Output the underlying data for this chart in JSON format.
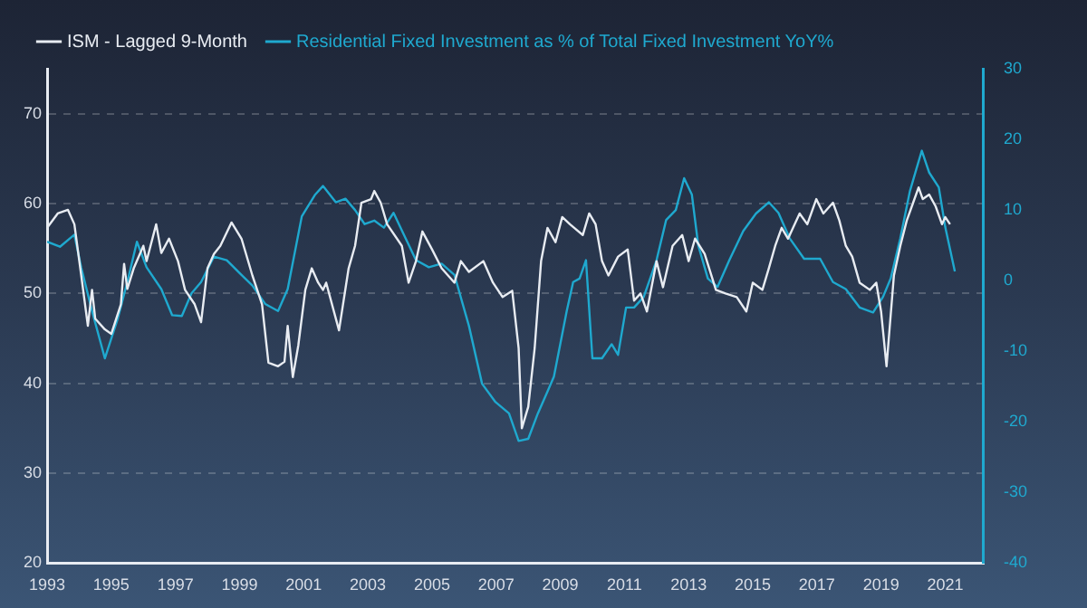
{
  "chart_data": {
    "type": "line",
    "legend": "top left",
    "grid": "y",
    "line_style": "solid",
    "marker": "none",
    "xlim": [
      1993,
      2022.2
    ],
    "xticks": [
      1993,
      1995,
      1997,
      1999,
      2001,
      2003,
      2005,
      2007,
      2009,
      2011,
      2013,
      2015,
      2017,
      2019,
      2021
    ],
    "ylim": [
      20,
      75
    ],
    "yticks": [
      20,
      30,
      40,
      50,
      60,
      70
    ],
    "y2lim": [
      -40,
      30
    ],
    "y2ticks": [
      -40,
      -30,
      -20,
      -10,
      0,
      10,
      20,
      30
    ],
    "series": [
      {
        "name": "ISM - Lagged 9-Month",
        "color": "#e8ecf2",
        "x": [
          1993.0,
          1993.33,
          1993.65,
          1993.85,
          1994.06,
          1994.27,
          1994.4,
          1994.5,
          1994.8,
          1995.0,
          1995.3,
          1995.4,
          1995.5,
          1995.7,
          1996.0,
          1996.1,
          1996.4,
          1996.56,
          1996.8,
          1997.08,
          1997.3,
          1997.6,
          1997.8,
          1998.0,
          1998.2,
          1998.4,
          1998.75,
          1999.06,
          1999.4,
          1999.7,
          1999.9,
          2000.2,
          2000.4,
          2000.5,
          2000.66,
          2000.83,
          2001.05,
          2001.25,
          2001.45,
          2001.6,
          2001.7,
          2002.1,
          2002.4,
          2002.6,
          2002.8,
          2003.1,
          2003.2,
          2003.4,
          2003.6,
          2004.06,
          2004.27,
          2004.5,
          2004.7,
          2005.0,
          2005.3,
          2005.7,
          2005.9,
          2006.15,
          2006.6,
          2006.9,
          2007.2,
          2007.5,
          2007.7,
          2007.8,
          2008.0,
          2008.2,
          2008.4,
          2008.6,
          2008.85,
          2009.06,
          2009.3,
          2009.7,
          2009.9,
          2010.1,
          2010.3,
          2010.5,
          2010.8,
          2011.1,
          2011.3,
          2011.5,
          2011.7,
          2012.0,
          2012.2,
          2012.5,
          2012.8,
          2013.0,
          2013.2,
          2013.5,
          2013.85,
          2014.15,
          2014.5,
          2014.8,
          2015.0,
          2015.3,
          2015.5,
          2015.7,
          2015.9,
          2016.1,
          2016.46,
          2016.7,
          2016.98,
          2017.2,
          2017.5,
          2017.7,
          2017.9,
          2018.1,
          2018.33,
          2018.65,
          2018.85,
          2019.0,
          2019.17,
          2019.4,
          2019.6,
          2019.8,
          2020.0,
          2020.17,
          2020.3,
          2020.5,
          2020.7,
          2020.9,
          2021.0,
          2021.15
        ],
        "values": [
          57.3,
          58.9,
          59.3,
          57.7,
          52.1,
          46.4,
          50.4,
          47.2,
          46,
          45.5,
          48.8,
          53.3,
          50.5,
          52.8,
          55.3,
          53.6,
          57.7,
          54.5,
          56.1,
          53.6,
          50.4,
          48.8,
          46.8,
          52.8,
          54.4,
          55.3,
          57.9,
          56.1,
          52,
          48.8,
          42.3,
          41.9,
          42.4,
          46.4,
          40.7,
          44.2,
          50.4,
          52.8,
          51.2,
          50.4,
          51.2,
          45.9,
          52.8,
          55.3,
          60.1,
          60.5,
          61.4,
          60.1,
          57.7,
          55.3,
          51.2,
          53.6,
          56.9,
          54.9,
          52.8,
          51.2,
          53.6,
          52.4,
          53.6,
          51.2,
          49.6,
          50.3,
          43.9,
          35,
          37.4,
          43.9,
          53.6,
          57.3,
          55.7,
          58.5,
          57.7,
          56.5,
          58.9,
          57.7,
          53.6,
          52,
          54.1,
          54.9,
          49.2,
          50,
          48,
          53.6,
          50.7,
          55.3,
          56.5,
          53.6,
          56.1,
          54.4,
          50.4,
          50,
          49.6,
          48,
          51.2,
          50.4,
          52.8,
          55.3,
          57.3,
          56.1,
          58.9,
          57.7,
          60.5,
          58.9,
          60.1,
          58.1,
          55.3,
          54.1,
          51.2,
          50.4,
          51.2,
          48,
          41.9,
          52,
          55.3,
          58.1,
          60.1,
          61.8,
          60.5,
          61,
          59.7,
          57.7,
          58.5,
          57.7
        ]
      },
      {
        "name": "Residential Fixed Investment as % of Total Fixed Investment YoY%",
        "color": "#1fa9cf",
        "axis": "y2",
        "x": [
          1993.0,
          1993.4,
          1993.85,
          1994.06,
          1994.4,
          1994.8,
          1995.2,
          1995.5,
          1995.8,
          1996.1,
          1996.56,
          1996.9,
          1997.2,
          1997.5,
          1997.8,
          1998.2,
          1998.6,
          1999.06,
          1999.4,
          1999.8,
          2000.2,
          2000.5,
          2000.94,
          2001.36,
          2001.6,
          2002.0,
          2002.3,
          2002.6,
          2002.9,
          2003.2,
          2003.5,
          2003.8,
          2004.06,
          2004.5,
          2004.9,
          2005.3,
          2005.7,
          2006.15,
          2006.56,
          2006.98,
          2007.4,
          2007.7,
          2008.0,
          2008.3,
          2008.6,
          2008.8,
          2009.2,
          2009.4,
          2009.6,
          2009.8,
          2010.0,
          2010.3,
          2010.6,
          2010.8,
          2011.05,
          2011.3,
          2011.6,
          2012.0,
          2012.3,
          2012.6,
          2012.86,
          2013.1,
          2013.3,
          2013.6,
          2013.9,
          2014.27,
          2014.7,
          2015.1,
          2015.5,
          2015.8,
          2016.15,
          2016.6,
          2017.1,
          2017.5,
          2017.9,
          2018.33,
          2018.75,
          2019.06,
          2019.3,
          2019.6,
          2019.9,
          2020.1,
          2020.27,
          2020.5,
          2020.8,
          2021.0,
          2021.3
        ],
        "values": [
          5.5,
          4.8,
          6.5,
          1.9,
          -4.3,
          -11,
          -5.4,
          -0.2,
          5.5,
          1.9,
          -1.2,
          -4.9,
          -5,
          -1.8,
          -0.2,
          3.4,
          2.9,
          0.8,
          -0.7,
          -3.3,
          -4.3,
          -1.2,
          9.1,
          12.2,
          13.4,
          11.1,
          11.6,
          10,
          8,
          8.5,
          7.5,
          9.6,
          7.1,
          2.9,
          1.9,
          2.4,
          0.8,
          -6.4,
          -14.6,
          -17.2,
          -18.8,
          -22.7,
          -22.4,
          -18.8,
          -15.7,
          -13.6,
          -4.3,
          -0.2,
          0.3,
          2.9,
          -11,
          -11,
          -9,
          -10.5,
          -3.8,
          -3.8,
          -2.3,
          2.9,
          8.6,
          10,
          14.5,
          12.2,
          5,
          0.3,
          -0.9,
          2.9,
          7,
          9.5,
          11.1,
          9.6,
          6,
          3.1,
          3.1,
          -0.2,
          -1.2,
          -3.8,
          -4.5,
          -2.3,
          0.3,
          6,
          12.7,
          15.8,
          18.4,
          15.3,
          13.2,
          7.6,
          1.3
        ]
      }
    ]
  }
}
